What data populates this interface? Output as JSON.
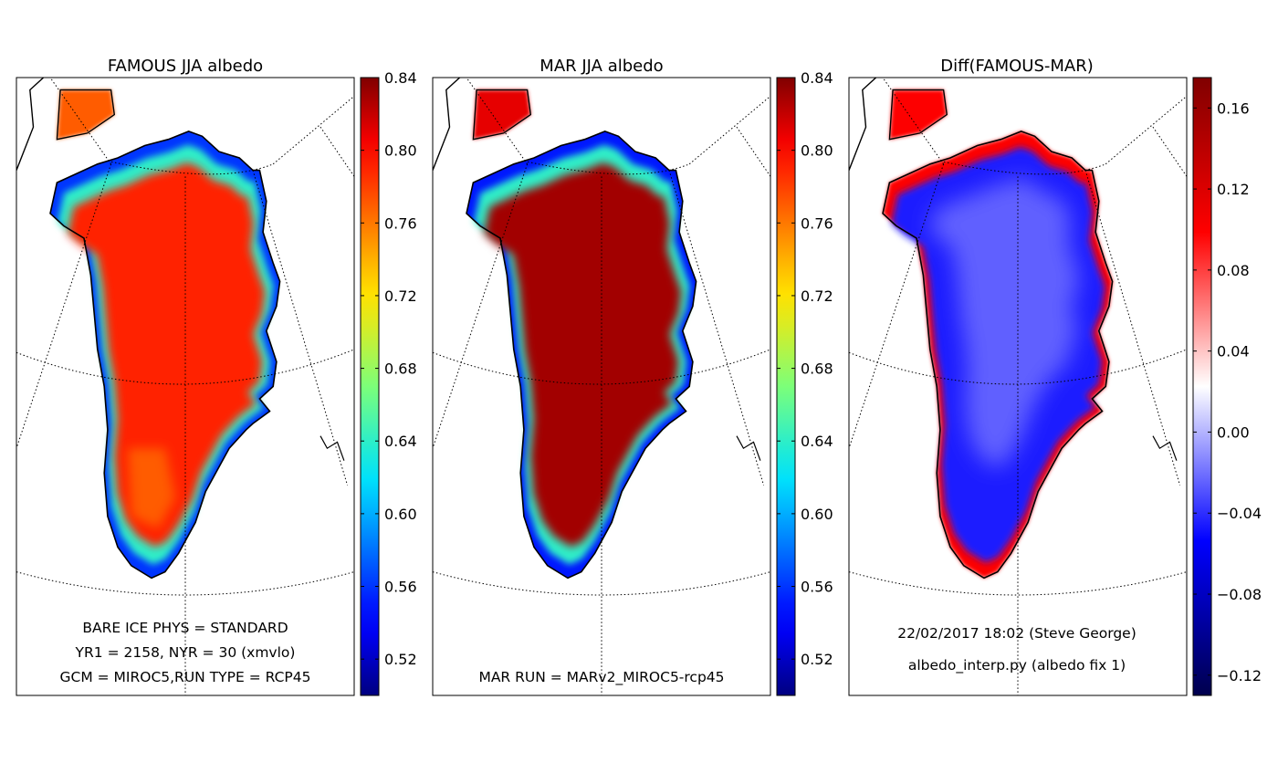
{
  "figure": {
    "panels": [
      {
        "title": "FAMOUS JJA albedo",
        "annotations": [
          "BARE ICE PHYS = STANDARD",
          "YR1 = 2158, NYR = 30 (xmvlo)",
          "GCM = MIROC5,RUN TYPE = RCP45"
        ],
        "colormap": "jet",
        "colorbar_ticks": [
          "0.84",
          "0.80",
          "0.76",
          "0.72",
          "0.68",
          "0.64",
          "0.60",
          "0.56",
          "0.52"
        ]
      },
      {
        "title": "MAR JJA albedo",
        "annotations": [
          "MAR RUN = MARv2_MIROC5-rcp45"
        ],
        "colormap": "jet",
        "colorbar_ticks": [
          "0.84",
          "0.80",
          "0.76",
          "0.72",
          "0.68",
          "0.64",
          "0.60",
          "0.56",
          "0.52"
        ]
      },
      {
        "title": "Diff(FAMOUS-MAR)",
        "annotations": [
          "22/02/2017 18:02 (Steve George)",
          "albedo_interp.py (albedo fix 1)"
        ],
        "colormap": "seismic",
        "colorbar_ticks": [
          "0.16",
          "0.12",
          "0.08",
          "0.04",
          "0.00",
          "−0.04",
          "−0.08",
          "−0.12"
        ]
      }
    ]
  },
  "chart_data": [
    {
      "type": "heatmap",
      "title": "FAMOUS JJA albedo",
      "projection": "polar stereographic map of Greenland with graticule",
      "colorbar": {
        "min": 0.5,
        "max": 0.84,
        "ticks": [
          0.84,
          0.8,
          0.76,
          0.72,
          0.68,
          0.64,
          0.6,
          0.56,
          0.52
        ]
      },
      "interior_value": 0.79,
      "south_dome_value": 0.77,
      "margin_value": 0.64,
      "edge_value": 0.56,
      "annotations": [
        "BARE ICE PHYS = STANDARD",
        "YR1 = 2158, NYR = 30 (xmvlo)",
        "GCM = MIROC5,RUN TYPE = RCP45"
      ]
    },
    {
      "type": "heatmap",
      "title": "MAR JJA albedo",
      "projection": "polar stereographic map of Greenland with graticule",
      "colorbar": {
        "min": 0.5,
        "max": 0.84,
        "ticks": [
          0.84,
          0.8,
          0.76,
          0.72,
          0.68,
          0.64,
          0.6,
          0.56,
          0.52
        ]
      },
      "interior_value": 0.83,
      "margin_value": 0.64,
      "edge_value": 0.55,
      "annotations": [
        "MAR RUN = MARv2_MIROC5-rcp45"
      ]
    },
    {
      "type": "heatmap",
      "title": "Diff(FAMOUS-MAR)",
      "projection": "polar stereographic map of Greenland with graticule",
      "colorbar": {
        "min": -0.13,
        "max": 0.175,
        "ticks": [
          0.16,
          0.12,
          0.08,
          0.04,
          0.0,
          -0.04,
          -0.08,
          -0.12
        ]
      },
      "interior_value": -0.025,
      "mid_value": -0.045,
      "margin_value": 0.1,
      "annotations": [
        "22/02/2017 18:02 (Steve George)",
        "albedo_interp.py (albedo fix 1)"
      ]
    }
  ]
}
